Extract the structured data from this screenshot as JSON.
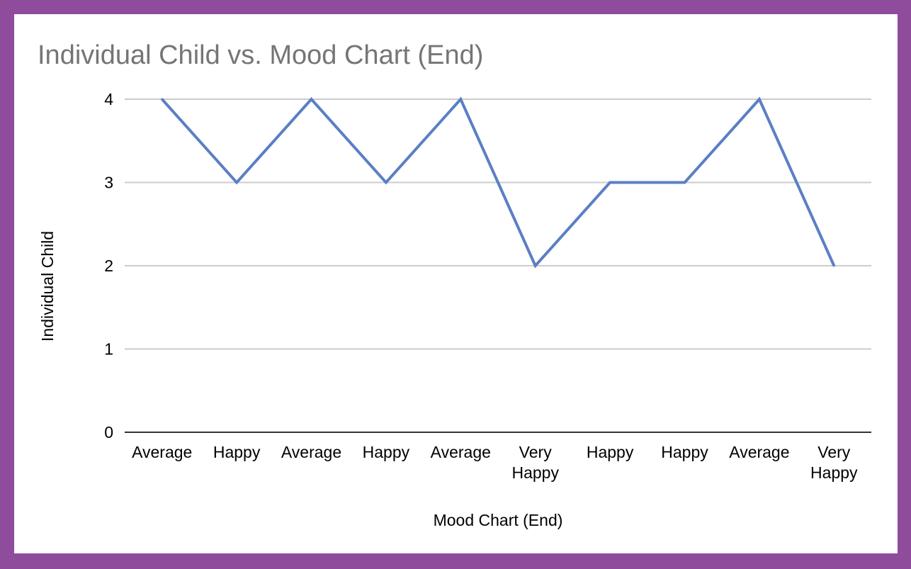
{
  "colors": {
    "border": "#8f4b9c",
    "background": "#ffffff",
    "series": "#5b7fc4",
    "grid": "#cccccc",
    "axis": "#333333",
    "title": "#757575"
  },
  "chart_data": {
    "type": "line",
    "title": "Individual Child vs. Mood Chart (End)",
    "xlabel": "Mood Chart (End)",
    "ylabel": "Individual Child",
    "categories": [
      "Average",
      "Happy",
      "Average",
      "Happy",
      "Average",
      "Very Happy",
      "Happy",
      "Happy",
      "Average",
      "Very Happy"
    ],
    "series": [
      {
        "values": [
          4,
          3,
          4,
          3,
          4,
          2,
          3,
          3,
          4,
          2
        ]
      }
    ],
    "ylim": [
      0,
      4
    ],
    "yticks": [
      "0",
      "1",
      "2",
      "3",
      "4"
    ],
    "grid": true,
    "legend": "none"
  }
}
